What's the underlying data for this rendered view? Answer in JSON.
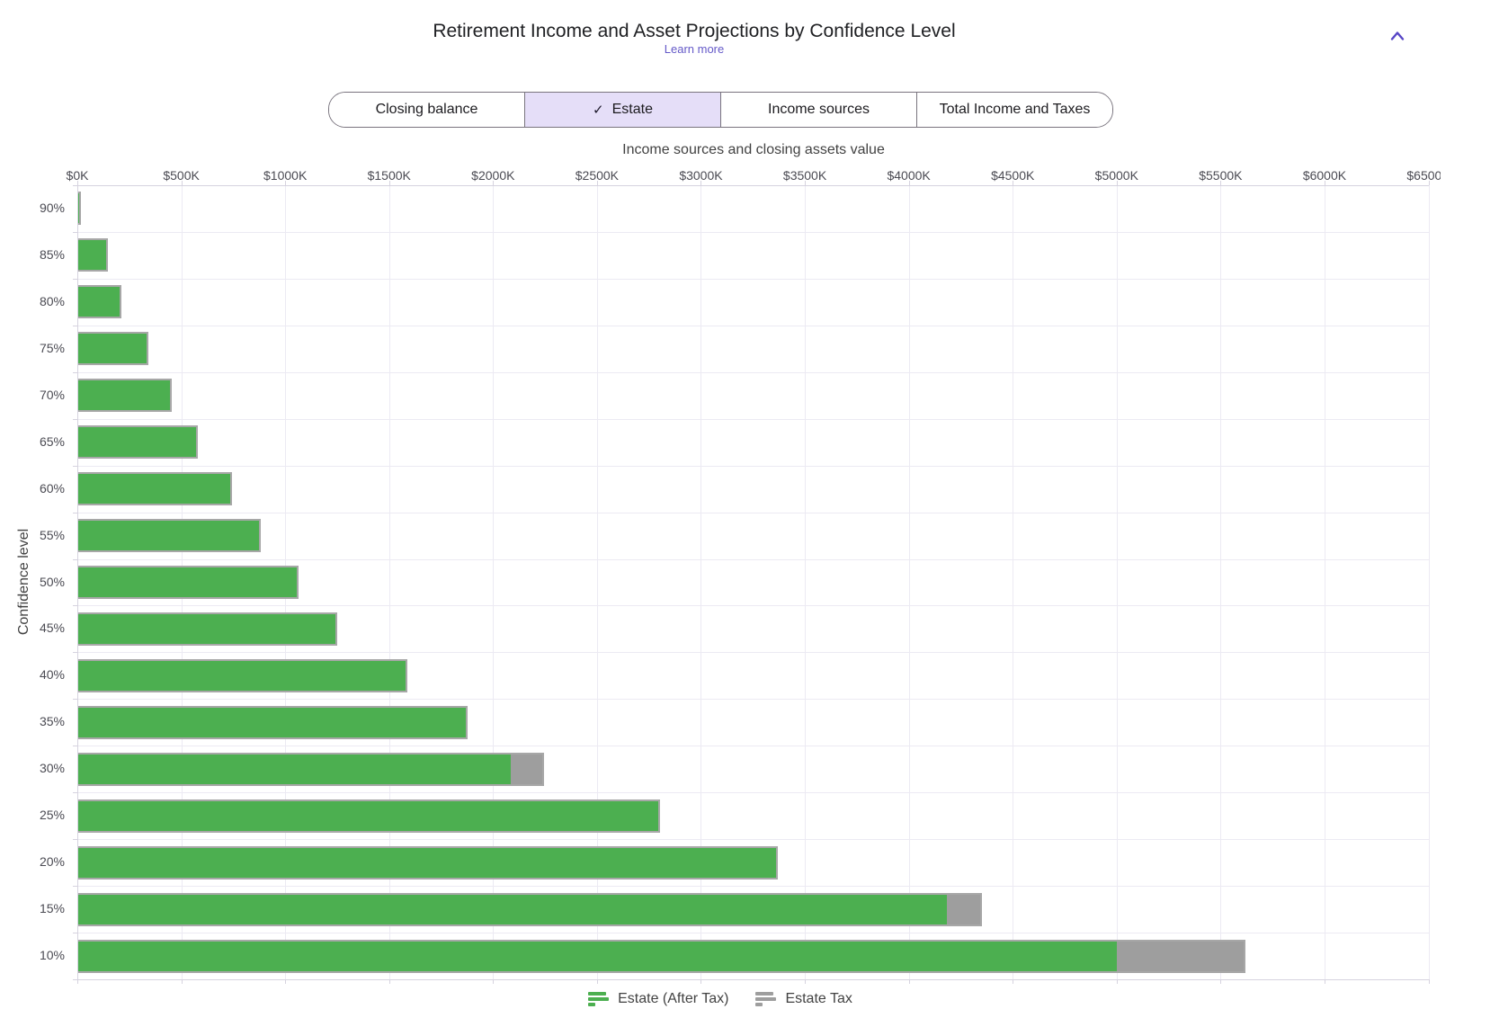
{
  "header": {
    "title": "Retirement Income and Asset Projections by Confidence Level",
    "learn_more_label": "Learn more"
  },
  "tabs": {
    "check_glyph": "✓",
    "items": [
      {
        "label": "Closing balance",
        "selected": false
      },
      {
        "label": "Estate",
        "selected": true
      },
      {
        "label": "Income sources",
        "selected": false
      },
      {
        "label": "Total Income and Taxes",
        "selected": false
      }
    ]
  },
  "chart_data": {
    "type": "bar",
    "orientation": "horizontal",
    "stacked": true,
    "xlabel": "Income sources and closing assets value",
    "ylabel": "Confidence level",
    "unit": "thousand USD",
    "categories": [
      "90%",
      "85%",
      "80%",
      "75%",
      "70%",
      "65%",
      "60%",
      "55%",
      "50%",
      "45%",
      "40%",
      "35%",
      "30%",
      "25%",
      "20%",
      "15%",
      "10%"
    ],
    "series": [
      {
        "name": "Estate (After Tax)",
        "color": "#4CAF50",
        "values": [
          5,
          135,
          197,
          330,
          440,
          567,
          732,
          870,
          1050,
          1238,
          1576,
          1865,
          2080,
          2790,
          3358,
          4180,
          4996
        ]
      },
      {
        "name": "Estate Tax",
        "color": "#9E9E9E",
        "values": [
          0,
          0,
          0,
          0,
          0,
          0,
          0,
          0,
          0,
          0,
          0,
          0,
          152,
          0,
          0,
          160,
          612
        ]
      }
    ],
    "xlim": [
      0,
      6500
    ],
    "x_tick_interval": 500,
    "x_tick_labels": [
      "$0K",
      "$500K",
      "$1000K",
      "$1500K",
      "$2000K",
      "$2500K",
      "$3000K",
      "$3500K",
      "$4000K",
      "$4500K",
      "$5000K",
      "$5500K",
      "$6000K",
      "$6500K"
    ],
    "grid": true,
    "legend_position": "bottom"
  },
  "colors": {
    "bar_green": "#4CAF50",
    "bar_gray": "#9E9E9E",
    "bar_border": "#A7A7A7",
    "accent_purple": "#5746C6",
    "link_purple": "#6459C8",
    "selected_tab_bg": "#E5DEF8",
    "tab_border": "#79747E",
    "gridline": "#ECEAF3",
    "axis_line": "#D6D3DF"
  }
}
